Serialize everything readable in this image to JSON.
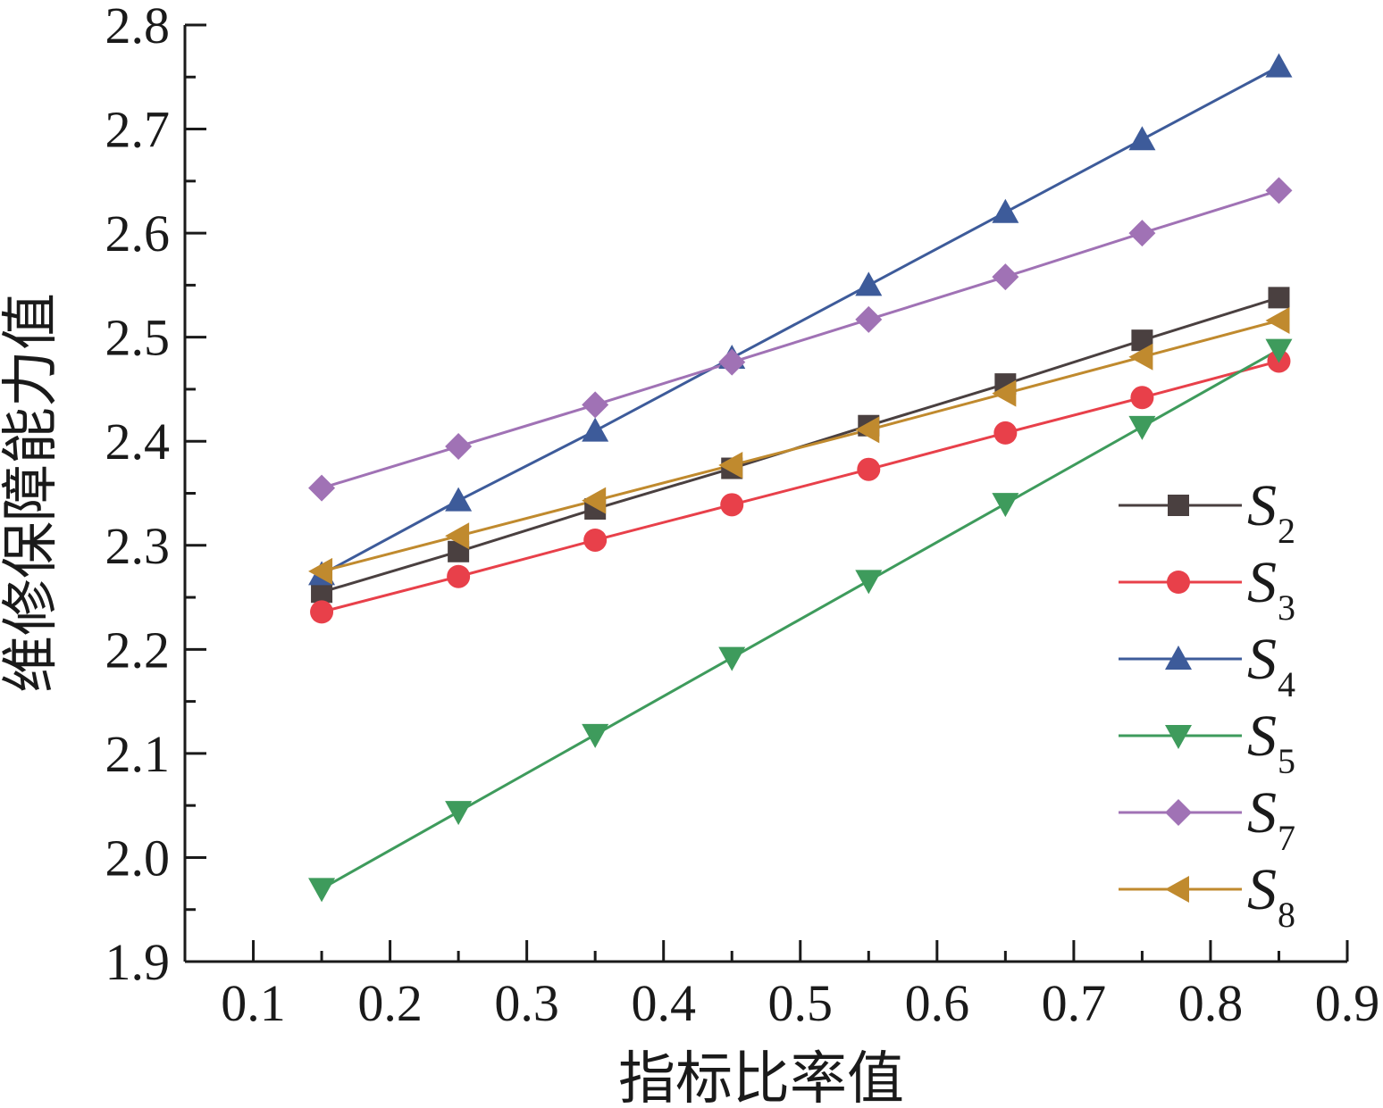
{
  "chart_data": {
    "type": "line",
    "xlabel": "指标比率值",
    "ylabel": "维修保障能力值",
    "xlim": [
      0.05,
      0.9
    ],
    "ylim": [
      1.9,
      2.8
    ],
    "xticks": [
      "0.1",
      "0.2",
      "0.3",
      "0.4",
      "0.5",
      "0.6",
      "0.7",
      "0.8",
      "0.9"
    ],
    "yticks": [
      "1.9",
      "2.0",
      "2.1",
      "2.2",
      "2.3",
      "2.4",
      "2.5",
      "2.6",
      "2.7",
      "2.8"
    ],
    "x": [
      0.15,
      0.25,
      0.35,
      0.45,
      0.55,
      0.65,
      0.75,
      0.85
    ],
    "grid": false,
    "legend_position": "right",
    "series": [
      {
        "letter": "S",
        "subscript": "2",
        "marker": "square",
        "color": "#4a4040",
        "values": [
          2.255,
          2.294,
          2.335,
          2.374,
          2.415,
          2.455,
          2.497,
          2.538
        ]
      },
      {
        "letter": "S",
        "subscript": "3",
        "marker": "circle",
        "color": "#e8404a",
        "values": [
          2.236,
          2.27,
          2.305,
          2.339,
          2.373,
          2.408,
          2.442,
          2.477
        ]
      },
      {
        "letter": "S",
        "subscript": "4",
        "marker": "triangle-up",
        "color": "#3d5b9a",
        "values": [
          2.272,
          2.343,
          2.41,
          2.48,
          2.55,
          2.62,
          2.69,
          2.76
        ]
      },
      {
        "letter": "S",
        "subscript": "5",
        "marker": "triangle-down",
        "color": "#3e9b5c",
        "values": [
          1.97,
          2.044,
          2.118,
          2.192,
          2.266,
          2.34,
          2.414,
          2.488
        ]
      },
      {
        "letter": "S",
        "subscript": "7",
        "marker": "diamond",
        "color": "#a072b5",
        "values": [
          2.355,
          2.395,
          2.435,
          2.476,
          2.517,
          2.558,
          2.6,
          2.641
        ]
      },
      {
        "letter": "S",
        "subscript": "8",
        "marker": "triangle-left",
        "color": "#c08a2e",
        "values": [
          2.275,
          2.309,
          2.343,
          2.377,
          2.411,
          2.446,
          2.481,
          2.516
        ]
      }
    ]
  }
}
